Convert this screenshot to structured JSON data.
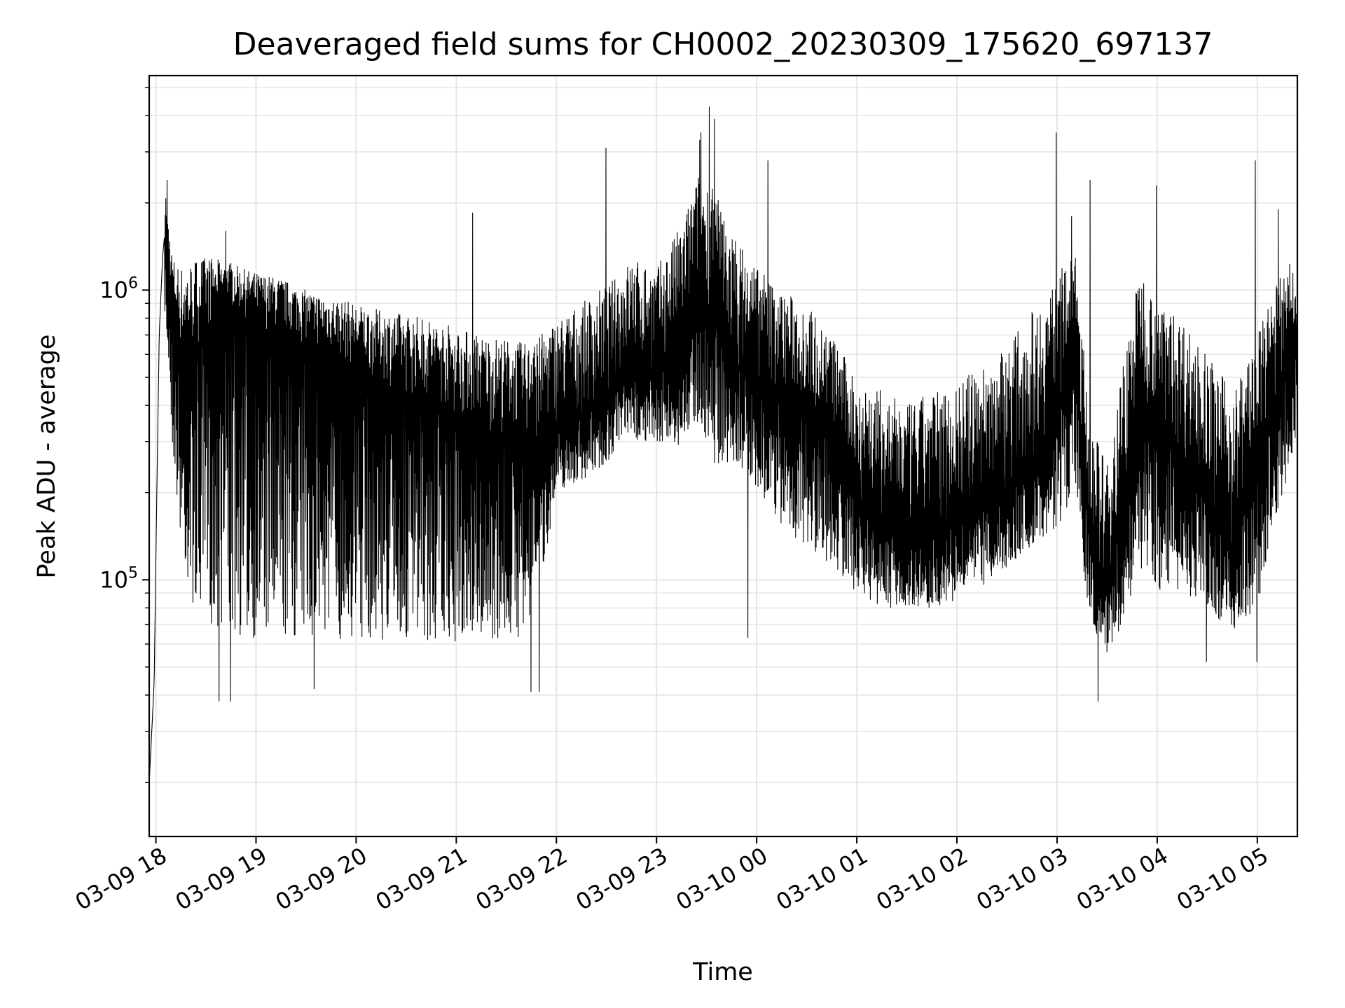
{
  "chart_data": {
    "type": "line",
    "title": "Deaveraged field sums for CH0002_20230309_175620_697137",
    "xlabel": "Time",
    "ylabel": "Peak ADU - average",
    "yscale": "log",
    "ylim": [
      13000,
      5500000
    ],
    "xlim": [
      "2023-03-09 17:56",
      "2023-03-10 05:24"
    ],
    "grid": true,
    "line_color": "#000000",
    "grid_color": "#e6e6e6",
    "x_ticks": [
      {
        "value": "2023-03-09 18:00",
        "label": "03-09 18"
      },
      {
        "value": "2023-03-09 19:00",
        "label": "03-09 19"
      },
      {
        "value": "2023-03-09 20:00",
        "label": "03-09 20"
      },
      {
        "value": "2023-03-09 21:00",
        "label": "03-09 21"
      },
      {
        "value": "2023-03-09 22:00",
        "label": "03-09 22"
      },
      {
        "value": "2023-03-09 23:00",
        "label": "03-09 23"
      },
      {
        "value": "2023-03-10 00:00",
        "label": "03-10 00"
      },
      {
        "value": "2023-03-10 01:00",
        "label": "03-10 01"
      },
      {
        "value": "2023-03-10 02:00",
        "label": "03-10 02"
      },
      {
        "value": "2023-03-10 03:00",
        "label": "03-10 03"
      },
      {
        "value": "2023-03-10 04:00",
        "label": "03-10 04"
      },
      {
        "value": "2023-03-10 05:00",
        "label": "03-10 05"
      }
    ],
    "y_ticks": [
      {
        "value": 100000,
        "base": "10",
        "exp": "5"
      },
      {
        "value": 1000000,
        "base": "10",
        "exp": "6"
      }
    ],
    "series": [
      {
        "x": [
          "2023-03-09 17:56",
          "2023-03-09 17:57",
          "2023-03-09 17:58",
          "2023-03-09 17:59",
          "2023-03-09 18:00",
          "2023-03-09 18:02",
          "2023-03-09 18:04",
          "2023-03-09 18:05",
          "2023-03-09 18:06",
          "2023-03-09 18:08",
          "2023-03-09 18:10",
          "2023-03-09 18:15",
          "2023-03-09 18:20",
          "2023-03-09 18:25",
          "2023-03-09 18:30",
          "2023-03-09 18:35",
          "2023-03-09 18:40",
          "2023-03-09 18:45",
          "2023-03-09 18:50",
          "2023-03-09 19:00",
          "2023-03-09 19:15",
          "2023-03-09 19:30",
          "2023-03-09 19:45",
          "2023-03-09 20:00",
          "2023-03-09 20:15",
          "2023-03-09 20:30",
          "2023-03-09 20:45",
          "2023-03-09 21:00",
          "2023-03-09 21:15",
          "2023-03-09 21:30",
          "2023-03-09 21:45",
          "2023-03-09 22:00",
          "2023-03-09 22:15",
          "2023-03-09 22:30",
          "2023-03-09 22:35",
          "2023-03-09 22:45",
          "2023-03-09 23:00",
          "2023-03-09 23:15",
          "2023-03-09 23:25",
          "2023-03-09 23:35",
          "2023-03-09 23:45",
          "2023-03-10 00:00",
          "2023-03-10 00:15",
          "2023-03-10 00:30",
          "2023-03-10 00:45",
          "2023-03-10 01:00",
          "2023-03-10 01:15",
          "2023-03-10 01:30",
          "2023-03-10 01:45",
          "2023-03-10 02:00",
          "2023-03-10 02:15",
          "2023-03-10 02:30",
          "2023-03-10 02:45",
          "2023-03-10 03:00",
          "2023-03-10 03:10",
          "2023-03-10 03:20",
          "2023-03-10 03:30",
          "2023-03-10 03:40",
          "2023-03-10 03:50",
          "2023-03-10 04:00",
          "2023-03-10 04:15",
          "2023-03-10 04:30",
          "2023-03-10 04:45",
          "2023-03-10 05:00",
          "2023-03-10 05:10",
          "2023-03-10 05:20",
          "2023-03-10 05:24"
        ],
        "y": [
          20000,
          26000,
          34000,
          45000,
          120000,
          700000,
          1300000,
          1500000,
          1600000,
          1200000,
          800000,
          600000,
          550000,
          650000,
          700000,
          750000,
          800000,
          850000,
          820000,
          750000,
          700000,
          650000,
          600000,
          520000,
          480000,
          430000,
          400000,
          360000,
          330000,
          320000,
          300000,
          330000,
          360000,
          420000,
          480000,
          520000,
          500000,
          600000,
          1000000,
          800000,
          550000,
          480000,
          420000,
          380000,
          330000,
          190000,
          150000,
          135000,
          140000,
          155000,
          180000,
          210000,
          250000,
          360000,
          600000,
          130000,
          90000,
          180000,
          450000,
          350000,
          260000,
          180000,
          130000,
          250000,
          380000,
          700000,
          600000
        ],
        "lo": [
          17000,
          22000,
          28000,
          38000,
          90000,
          500000,
          900000,
          900000,
          700000,
          500000,
          280000,
          130000,
          90000,
          75000,
          70000,
          70000,
          65000,
          62000,
          62000,
          62000,
          60000,
          62000,
          62000,
          62000,
          62000,
          60000,
          60000,
          60000,
          62000,
          62000,
          62000,
          200000,
          220000,
          250000,
          280000,
          300000,
          300000,
          280000,
          350000,
          250000,
          250000,
          200000,
          150000,
          130000,
          110000,
          90000,
          80000,
          80000,
          80000,
          85000,
          95000,
          110000,
          130000,
          150000,
          200000,
          70000,
          55000,
          70000,
          110000,
          90000,
          90000,
          80000,
          65000,
          80000,
          150000,
          250000,
          300000
        ],
        "hi": [
          21000,
          28000,
          37000,
          48000,
          230000,
          1200000,
          1800000,
          2100000,
          2200000,
          1600000,
          1300000,
          1200000,
          1250000,
          1300000,
          1300000,
          1300000,
          1250000,
          1250000,
          1200000,
          1150000,
          1100000,
          1000000,
          950000,
          900000,
          850000,
          830000,
          800000,
          750000,
          700000,
          680000,
          650000,
          800000,
          900000,
          1050000,
          1100000,
          1300000,
          1200000,
          1700000,
          2500000,
          2200000,
          1600000,
          1200000,
          1000000,
          900000,
          700000,
          500000,
          450000,
          400000,
          450000,
          480000,
          550000,
          650000,
          850000,
          1100000,
          1500000,
          350000,
          250000,
          600000,
          1200000,
          900000,
          800000,
          600000,
          450000,
          700000,
          1000000,
          1300000,
          900000
        ],
        "spikes": [
          {
            "x": "2023-03-09 18:07",
            "y": 2400000
          },
          {
            "x": "2023-03-09 18:42",
            "y": 1600000
          },
          {
            "x": "2023-03-09 21:10",
            "y": 1850000
          },
          {
            "x": "2023-03-09 22:30",
            "y": 3100000
          },
          {
            "x": "2023-03-09 23:26",
            "y": 3300000
          },
          {
            "x": "2023-03-09 23:27",
            "y": 3500000
          },
          {
            "x": "2023-03-09 23:32",
            "y": 4300000
          },
          {
            "x": "2023-03-09 23:35",
            "y": 3900000
          },
          {
            "x": "2023-03-10 00:07",
            "y": 2800000
          },
          {
            "x": "2023-03-10 03:00",
            "y": 3500000
          },
          {
            "x": "2023-03-10 03:09",
            "y": 1800000
          },
          {
            "x": "2023-03-10 03:20",
            "y": 2400000
          },
          {
            "x": "2023-03-10 04:00",
            "y": 2300000
          },
          {
            "x": "2023-03-10 04:59",
            "y": 2800000
          },
          {
            "x": "2023-03-10 05:13",
            "y": 1900000
          }
        ],
        "dips": [
          {
            "x": "2023-03-09 18:38",
            "y": 38000
          },
          {
            "x": "2023-03-09 18:45",
            "y": 38000
          },
          {
            "x": "2023-03-09 19:35",
            "y": 42000
          },
          {
            "x": "2023-03-09 21:45",
            "y": 41000
          },
          {
            "x": "2023-03-09 21:50",
            "y": 41000
          },
          {
            "x": "2023-03-09 23:55",
            "y": 63000
          },
          {
            "x": "2023-03-10 03:25",
            "y": 38000
          },
          {
            "x": "2023-03-10 04:30",
            "y": 52000
          },
          {
            "x": "2023-03-10 05:00",
            "y": 52000
          }
        ]
      }
    ]
  }
}
